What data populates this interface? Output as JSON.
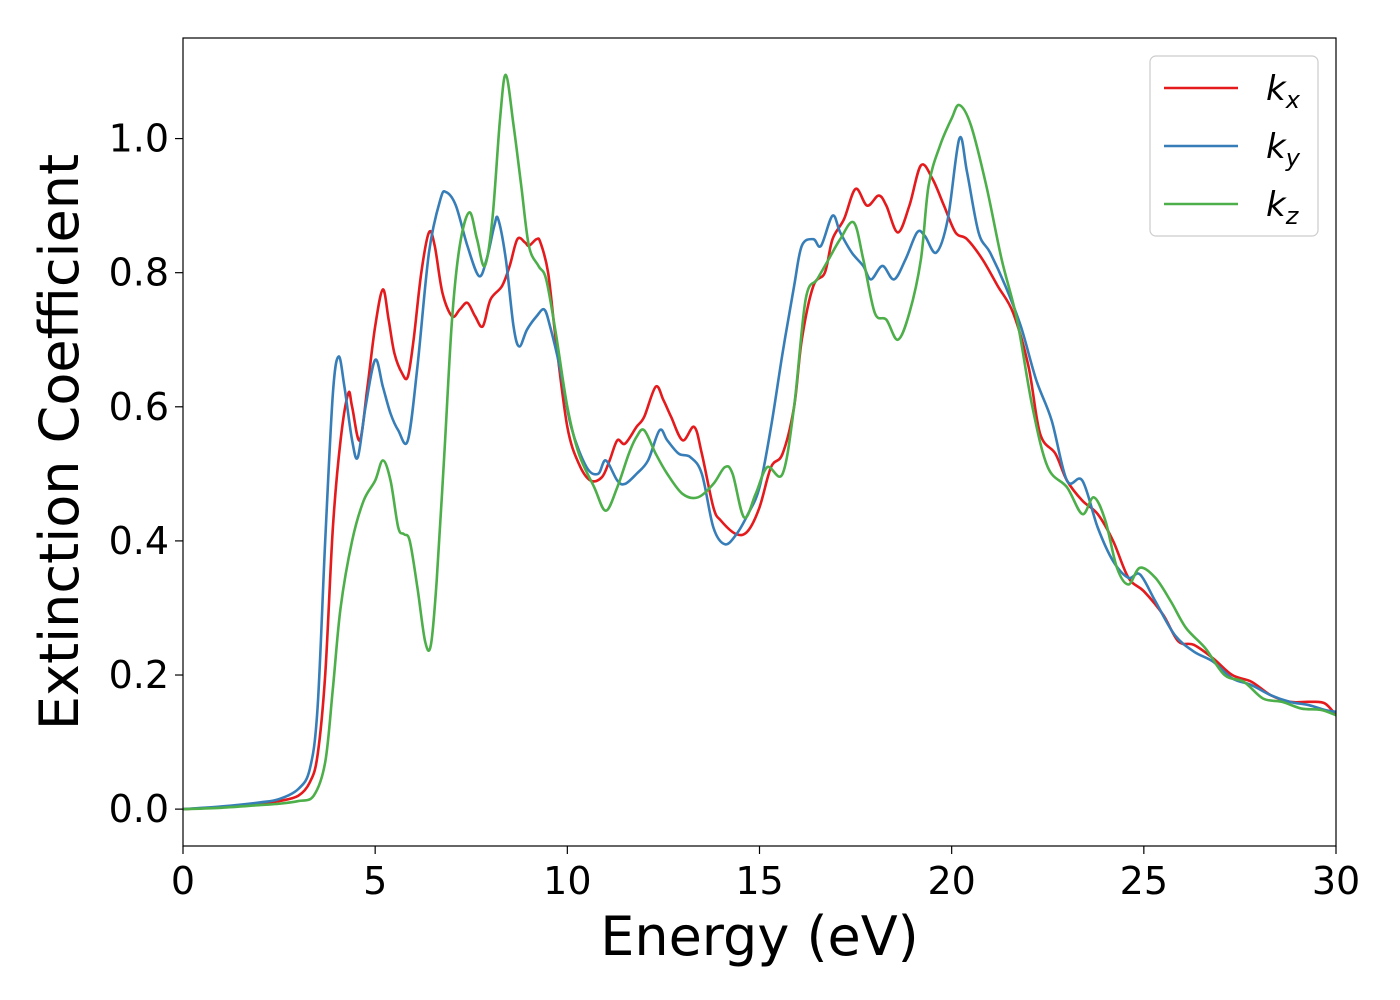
{
  "chart_data": {
    "type": "line",
    "title": "",
    "xlabel": "Energy (eV)",
    "ylabel": "Extinction Coefficient",
    "xlim": [
      0,
      30
    ],
    "ylim": [
      -0.055,
      1.15
    ],
    "xticks": [
      0,
      5,
      10,
      15,
      20,
      25,
      30
    ],
    "xtick_labels": [
      "0",
      "5",
      "10",
      "15",
      "20",
      "25",
      "30"
    ],
    "yticks": [
      0.0,
      0.2,
      0.4,
      0.6,
      0.8,
      1.0
    ],
    "ytick_labels": [
      "0.0",
      "0.2",
      "0.4",
      "0.6",
      "0.8",
      "1.0"
    ],
    "grid": false,
    "legend_position": "top-right",
    "series": [
      {
        "name": "k_x",
        "legend_main": "k",
        "legend_sub": "x",
        "color": "#e41a1c",
        "points": [
          [
            0,
            0.0
          ],
          [
            1,
            0.003
          ],
          [
            2,
            0.008
          ],
          [
            2.5,
            0.012
          ],
          [
            3,
            0.02
          ],
          [
            3.3,
            0.04
          ],
          [
            3.5,
            0.08
          ],
          [
            3.7,
            0.2
          ],
          [
            3.9,
            0.42
          ],
          [
            4.1,
            0.55
          ],
          [
            4.3,
            0.62
          ],
          [
            4.4,
            0.6
          ],
          [
            4.6,
            0.55
          ],
          [
            4.8,
            0.63
          ],
          [
            5,
            0.72
          ],
          [
            5.2,
            0.775
          ],
          [
            5.35,
            0.73
          ],
          [
            5.5,
            0.68
          ],
          [
            5.7,
            0.65
          ],
          [
            5.85,
            0.645
          ],
          [
            6.0,
            0.7
          ],
          [
            6.2,
            0.8
          ],
          [
            6.4,
            0.86
          ],
          [
            6.55,
            0.84
          ],
          [
            6.75,
            0.77
          ],
          [
            7.0,
            0.735
          ],
          [
            7.2,
            0.745
          ],
          [
            7.4,
            0.755
          ],
          [
            7.6,
            0.735
          ],
          [
            7.8,
            0.72
          ],
          [
            8.0,
            0.76
          ],
          [
            8.3,
            0.78
          ],
          [
            8.5,
            0.81
          ],
          [
            8.7,
            0.85
          ],
          [
            8.9,
            0.845
          ],
          [
            9.0,
            0.84
          ],
          [
            9.2,
            0.85
          ],
          [
            9.3,
            0.845
          ],
          [
            9.5,
            0.8
          ],
          [
            9.7,
            0.7
          ],
          [
            10.0,
            0.57
          ],
          [
            10.3,
            0.515
          ],
          [
            10.6,
            0.49
          ],
          [
            10.9,
            0.495
          ],
          [
            11.1,
            0.52
          ],
          [
            11.3,
            0.55
          ],
          [
            11.5,
            0.545
          ],
          [
            11.8,
            0.57
          ],
          [
            12.0,
            0.585
          ],
          [
            12.3,
            0.63
          ],
          [
            12.5,
            0.61
          ],
          [
            12.7,
            0.585
          ],
          [
            13.0,
            0.55
          ],
          [
            13.3,
            0.57
          ],
          [
            13.5,
            0.53
          ],
          [
            13.8,
            0.45
          ],
          [
            14.0,
            0.43
          ],
          [
            14.4,
            0.41
          ],
          [
            14.7,
            0.415
          ],
          [
            15.0,
            0.45
          ],
          [
            15.3,
            0.51
          ],
          [
            15.6,
            0.53
          ],
          [
            15.9,
            0.6
          ],
          [
            16.1,
            0.7
          ],
          [
            16.4,
            0.78
          ],
          [
            16.7,
            0.8
          ],
          [
            16.9,
            0.85
          ],
          [
            17.2,
            0.88
          ],
          [
            17.5,
            0.925
          ],
          [
            17.8,
            0.9
          ],
          [
            18.1,
            0.915
          ],
          [
            18.3,
            0.9
          ],
          [
            18.6,
            0.86
          ],
          [
            18.9,
            0.9
          ],
          [
            19.2,
            0.96
          ],
          [
            19.5,
            0.94
          ],
          [
            19.8,
            0.9
          ],
          [
            20.1,
            0.86
          ],
          [
            20.4,
            0.85
          ],
          [
            20.8,
            0.82
          ],
          [
            21.2,
            0.78
          ],
          [
            21.6,
            0.74
          ],
          [
            22.0,
            0.66
          ],
          [
            22.3,
            0.56
          ],
          [
            22.7,
            0.53
          ],
          [
            23.0,
            0.49
          ],
          [
            23.4,
            0.46
          ],
          [
            23.8,
            0.44
          ],
          [
            24.2,
            0.4
          ],
          [
            24.6,
            0.345
          ],
          [
            25.0,
            0.325
          ],
          [
            25.5,
            0.29
          ],
          [
            25.9,
            0.25
          ],
          [
            26.3,
            0.245
          ],
          [
            26.8,
            0.225
          ],
          [
            27.3,
            0.2
          ],
          [
            27.8,
            0.19
          ],
          [
            28.3,
            0.17
          ],
          [
            28.8,
            0.16
          ],
          [
            29.3,
            0.16
          ],
          [
            29.7,
            0.158
          ],
          [
            30,
            0.14
          ]
        ]
      },
      {
        "name": "k_y",
        "legend_main": "k",
        "legend_sub": "y",
        "color": "#377eb8",
        "points": [
          [
            0,
            0.0
          ],
          [
            1,
            0.004
          ],
          [
            2,
            0.01
          ],
          [
            2.5,
            0.015
          ],
          [
            3,
            0.03
          ],
          [
            3.3,
            0.06
          ],
          [
            3.5,
            0.15
          ],
          [
            3.7,
            0.4
          ],
          [
            3.9,
            0.62
          ],
          [
            4.05,
            0.675
          ],
          [
            4.2,
            0.63
          ],
          [
            4.4,
            0.55
          ],
          [
            4.55,
            0.525
          ],
          [
            4.75,
            0.6
          ],
          [
            5.0,
            0.67
          ],
          [
            5.2,
            0.63
          ],
          [
            5.4,
            0.59
          ],
          [
            5.6,
            0.565
          ],
          [
            5.85,
            0.55
          ],
          [
            6.1,
            0.66
          ],
          [
            6.4,
            0.83
          ],
          [
            6.7,
            0.91
          ],
          [
            6.85,
            0.92
          ],
          [
            7.1,
            0.9
          ],
          [
            7.4,
            0.84
          ],
          [
            7.7,
            0.795
          ],
          [
            7.9,
            0.82
          ],
          [
            8.1,
            0.87
          ],
          [
            8.2,
            0.88
          ],
          [
            8.4,
            0.82
          ],
          [
            8.6,
            0.72
          ],
          [
            8.75,
            0.69
          ],
          [
            8.95,
            0.715
          ],
          [
            9.2,
            0.735
          ],
          [
            9.4,
            0.745
          ],
          [
            9.55,
            0.72
          ],
          [
            9.8,
            0.66
          ],
          [
            10.1,
            0.57
          ],
          [
            10.5,
            0.51
          ],
          [
            10.8,
            0.5
          ],
          [
            11.0,
            0.52
          ],
          [
            11.3,
            0.49
          ],
          [
            11.5,
            0.485
          ],
          [
            11.8,
            0.5
          ],
          [
            12.1,
            0.52
          ],
          [
            12.4,
            0.565
          ],
          [
            12.6,
            0.55
          ],
          [
            12.9,
            0.53
          ],
          [
            13.2,
            0.525
          ],
          [
            13.5,
            0.5
          ],
          [
            13.8,
            0.42
          ],
          [
            14.1,
            0.395
          ],
          [
            14.4,
            0.41
          ],
          [
            14.7,
            0.44
          ],
          [
            15.0,
            0.48
          ],
          [
            15.3,
            0.57
          ],
          [
            15.6,
            0.68
          ],
          [
            15.9,
            0.78
          ],
          [
            16.1,
            0.84
          ],
          [
            16.4,
            0.85
          ],
          [
            16.6,
            0.84
          ],
          [
            16.9,
            0.885
          ],
          [
            17.1,
            0.86
          ],
          [
            17.4,
            0.83
          ],
          [
            17.7,
            0.81
          ],
          [
            17.9,
            0.79
          ],
          [
            18.2,
            0.81
          ],
          [
            18.5,
            0.79
          ],
          [
            18.8,
            0.82
          ],
          [
            19.1,
            0.86
          ],
          [
            19.3,
            0.855
          ],
          [
            19.6,
            0.83
          ],
          [
            19.9,
            0.88
          ],
          [
            20.2,
            1.0
          ],
          [
            20.4,
            0.95
          ],
          [
            20.7,
            0.86
          ],
          [
            21.0,
            0.83
          ],
          [
            21.4,
            0.78
          ],
          [
            21.8,
            0.72
          ],
          [
            22.2,
            0.64
          ],
          [
            22.6,
            0.58
          ],
          [
            23.0,
            0.49
          ],
          [
            23.4,
            0.49
          ],
          [
            23.8,
            0.42
          ],
          [
            24.2,
            0.37
          ],
          [
            24.6,
            0.345
          ],
          [
            24.9,
            0.35
          ],
          [
            25.3,
            0.31
          ],
          [
            25.8,
            0.26
          ],
          [
            26.3,
            0.235
          ],
          [
            26.8,
            0.22
          ],
          [
            27.3,
            0.195
          ],
          [
            27.8,
            0.185
          ],
          [
            28.3,
            0.17
          ],
          [
            28.8,
            0.16
          ],
          [
            29.3,
            0.155
          ],
          [
            29.7,
            0.148
          ],
          [
            30,
            0.145
          ]
        ]
      },
      {
        "name": "k_z",
        "legend_main": "k",
        "legend_sub": "z",
        "color": "#4daf4a",
        "points": [
          [
            0,
            0.0
          ],
          [
            1,
            0.002
          ],
          [
            2,
            0.006
          ],
          [
            2.5,
            0.008
          ],
          [
            3,
            0.012
          ],
          [
            3.4,
            0.02
          ],
          [
            3.7,
            0.07
          ],
          [
            3.9,
            0.18
          ],
          [
            4.1,
            0.3
          ],
          [
            4.4,
            0.4
          ],
          [
            4.7,
            0.46
          ],
          [
            5.0,
            0.49
          ],
          [
            5.2,
            0.52
          ],
          [
            5.4,
            0.49
          ],
          [
            5.6,
            0.42
          ],
          [
            5.75,
            0.41
          ],
          [
            5.9,
            0.4
          ],
          [
            6.1,
            0.33
          ],
          [
            6.3,
            0.25
          ],
          [
            6.45,
            0.245
          ],
          [
            6.6,
            0.34
          ],
          [
            6.8,
            0.53
          ],
          [
            7.0,
            0.73
          ],
          [
            7.2,
            0.84
          ],
          [
            7.45,
            0.89
          ],
          [
            7.65,
            0.85
          ],
          [
            7.85,
            0.81
          ],
          [
            8.05,
            0.88
          ],
          [
            8.25,
            1.03
          ],
          [
            8.4,
            1.095
          ],
          [
            8.6,
            1.02
          ],
          [
            8.8,
            0.93
          ],
          [
            9.0,
            0.84
          ],
          [
            9.25,
            0.81
          ],
          [
            9.45,
            0.79
          ],
          [
            9.7,
            0.71
          ],
          [
            10.0,
            0.6
          ],
          [
            10.3,
            0.53
          ],
          [
            10.7,
            0.48
          ],
          [
            11.0,
            0.445
          ],
          [
            11.3,
            0.48
          ],
          [
            11.6,
            0.53
          ],
          [
            11.8,
            0.555
          ],
          [
            12.0,
            0.565
          ],
          [
            12.3,
            0.53
          ],
          [
            12.6,
            0.5
          ],
          [
            13.0,
            0.47
          ],
          [
            13.4,
            0.465
          ],
          [
            13.8,
            0.485
          ],
          [
            14.1,
            0.51
          ],
          [
            14.3,
            0.5
          ],
          [
            14.6,
            0.435
          ],
          [
            14.9,
            0.47
          ],
          [
            15.2,
            0.51
          ],
          [
            15.6,
            0.5
          ],
          [
            15.9,
            0.6
          ],
          [
            16.2,
            0.76
          ],
          [
            16.5,
            0.79
          ],
          [
            16.8,
            0.82
          ],
          [
            17.1,
            0.85
          ],
          [
            17.45,
            0.875
          ],
          [
            17.7,
            0.82
          ],
          [
            18.0,
            0.74
          ],
          [
            18.3,
            0.73
          ],
          [
            18.6,
            0.7
          ],
          [
            18.9,
            0.74
          ],
          [
            19.2,
            0.82
          ],
          [
            19.4,
            0.93
          ],
          [
            19.7,
            0.99
          ],
          [
            20.0,
            1.03
          ],
          [
            20.2,
            1.05
          ],
          [
            20.5,
            1.02
          ],
          [
            20.9,
            0.93
          ],
          [
            21.3,
            0.82
          ],
          [
            21.7,
            0.73
          ],
          [
            22.1,
            0.6
          ],
          [
            22.5,
            0.51
          ],
          [
            23.0,
            0.48
          ],
          [
            23.4,
            0.44
          ],
          [
            23.7,
            0.465
          ],
          [
            24.0,
            0.43
          ],
          [
            24.3,
            0.36
          ],
          [
            24.6,
            0.335
          ],
          [
            24.9,
            0.36
          ],
          [
            25.3,
            0.345
          ],
          [
            25.7,
            0.31
          ],
          [
            26.1,
            0.27
          ],
          [
            26.6,
            0.24
          ],
          [
            27.1,
            0.2
          ],
          [
            27.6,
            0.19
          ],
          [
            28.1,
            0.165
          ],
          [
            28.6,
            0.16
          ],
          [
            29.1,
            0.15
          ],
          [
            29.6,
            0.148
          ],
          [
            30,
            0.14
          ]
        ]
      }
    ]
  }
}
